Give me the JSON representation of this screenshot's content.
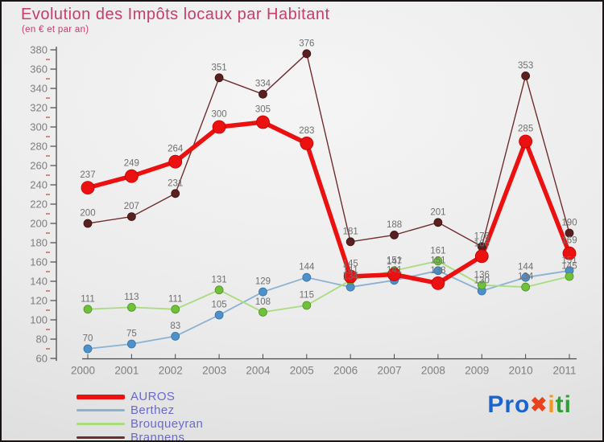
{
  "title": "Evolution des Impôts locaux par Habitant",
  "subtitle": "(en € et par an)",
  "colors": {
    "title": "#c63e69",
    "axis_line": "#4a4a4a",
    "axis_label": "#7e7e7e",
    "minor_tick": "#cc2200",
    "data_label": "#6f6f6f",
    "legend_text": "#6a6acc"
  },
  "chart_data": {
    "type": "line",
    "title": "Evolution des Impôts locaux par Habitant",
    "subtitle": "(en € et par an)",
    "x": [
      2000,
      2001,
      2002,
      2003,
      2004,
      2005,
      2006,
      2007,
      2008,
      2009,
      2010,
      2011
    ],
    "ylim": [
      60,
      380
    ],
    "ytick_step": 20,
    "minor_tick_step": 10,
    "grid": false,
    "legend_position": "bottom-left",
    "series": [
      {
        "name": "AUROS",
        "color": "#ec1111",
        "marker_color": "#ec1111",
        "marker_stroke": "#c00000",
        "line_width": 5.5,
        "marker_radius": 8,
        "values": [
          237,
          249,
          264,
          300,
          305,
          283,
          145,
          147,
          138,
          166,
          285,
          169
        ]
      },
      {
        "name": "Berthez",
        "color": "#8ab2d4",
        "marker_color": "#4d90cc",
        "marker_stroke": "#36729f",
        "line_width": 1.8,
        "marker_radius": 5,
        "values": [
          70,
          75,
          83,
          105,
          129,
          144,
          134,
          141,
          151,
          130,
          144,
          151
        ]
      },
      {
        "name": "Brouqueyran",
        "color": "#a8dc7e",
        "marker_color": "#6fc13a",
        "marker_stroke": "#4f9122",
        "line_width": 1.8,
        "marker_radius": 5,
        "values": [
          111,
          113,
          111,
          131,
          108,
          115,
          141,
          151,
          161,
          136,
          134,
          145
        ]
      },
      {
        "name": "Brannens",
        "color": "#6f2e2e",
        "marker_color": "#5a1f1f",
        "marker_stroke": "#3f1414",
        "line_width": 1.4,
        "marker_radius": 5,
        "values": [
          200,
          207,
          231,
          351,
          334,
          376,
          181,
          188,
          201,
          176,
          353,
          190
        ]
      }
    ]
  },
  "logo": {
    "text": "Proxiti",
    "letters": [
      {
        "ch": "P",
        "color": "#1b64cf",
        "x": false
      },
      {
        "ch": "r",
        "color": "#1b64cf",
        "x": false
      },
      {
        "ch": "o",
        "color": "#1b64cf",
        "x": false
      },
      {
        "ch": "✖",
        "color": "#e8431c",
        "x": true
      },
      {
        "ch": "i",
        "color": "#f7941d",
        "x": false
      },
      {
        "ch": "t",
        "color": "#2fa032",
        "x": false
      },
      {
        "ch": "i",
        "color": "#2fa032",
        "x": false
      }
    ]
  }
}
